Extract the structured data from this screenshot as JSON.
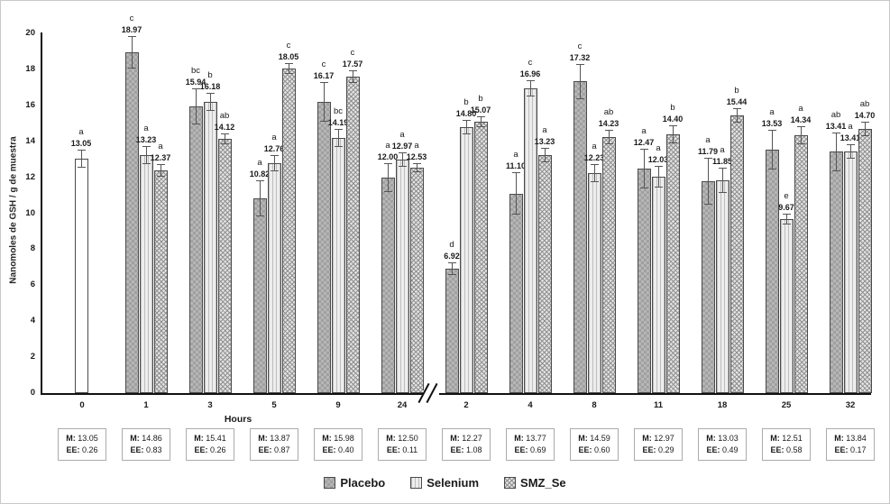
{
  "figure": {
    "ylabel": "Nanomoles de GSH / g de muestra",
    "xlabel": "Hours",
    "legend": [
      {
        "label": "Placebo",
        "pattern": "placebo"
      },
      {
        "label": "Selenium",
        "pattern": "selenium"
      },
      {
        "label": "SMZ_Se",
        "pattern": "smz"
      }
    ],
    "colors": {
      "axis": "#111111",
      "bar_border": "#4a4a4a",
      "error_bar": "#555555",
      "placebo_fill": "#b6b6b6",
      "selenium_fill": "#ededed",
      "smz_fill": "#e3e3e3",
      "baseline_fill": "#ffffff",
      "summary_box_border": "#ababab"
    }
  },
  "chart_data": {
    "type": "bar",
    "title": "",
    "xlabel": "Hours",
    "ylabel": "Nanomoles de GSH / g de muestra",
    "ylim": [
      0,
      20
    ],
    "y_ticks": [
      0,
      2,
      4,
      6,
      8,
      10,
      12,
      14,
      16,
      18,
      20
    ],
    "grid": false,
    "legend_position": "bottom-center",
    "axis_break_between": [
      "24",
      "2"
    ],
    "categories": [
      "0",
      "1",
      "3",
      "5",
      "9",
      "24",
      "2",
      "4",
      "8",
      "11",
      "18",
      "25",
      "32"
    ],
    "series": [
      {
        "name": "Placebo",
        "values": [
          null,
          18.97,
          15.94,
          10.82,
          16.17,
          12.0,
          6.92,
          11.1,
          17.32,
          12.47,
          11.79,
          13.53,
          13.41
        ]
      },
      {
        "name": "Selenium",
        "values": [
          null,
          13.23,
          16.18,
          12.76,
          14.19,
          12.97,
          14.8,
          16.96,
          12.23,
          12.03,
          11.85,
          9.67,
          13.41
        ]
      },
      {
        "name": "SMZ_Se",
        "values": [
          null,
          12.37,
          14.12,
          18.05,
          17.57,
          12.53,
          15.07,
          13.23,
          14.23,
          14.4,
          15.44,
          14.34,
          14.7
        ]
      }
    ],
    "baseline_bar": {
      "category": "0",
      "value": 13.05,
      "letter": "a"
    },
    "groups": [
      {
        "hour": "0",
        "M": "13.05",
        "EE": "0.26",
        "bars": [
          {
            "series": "Baseline",
            "pattern": "baseline",
            "value": 13.05,
            "label": "13.05",
            "letter": "a",
            "err": 0.5
          }
        ]
      },
      {
        "hour": "1",
        "M": "14.86",
        "EE": "0.83",
        "bars": [
          {
            "series": "Placebo",
            "pattern": "placebo",
            "value": 18.97,
            "label": "18.97",
            "letter": "c",
            "err": 0.9
          },
          {
            "series": "Selenium",
            "pattern": "selenium",
            "value": 13.23,
            "label": "13.23",
            "letter": "a",
            "err": 0.5
          },
          {
            "series": "SMZ_Se",
            "pattern": "smz",
            "value": 12.37,
            "label": "12.37",
            "letter": "a",
            "err": 0.35
          }
        ]
      },
      {
        "hour": "3",
        "M": "15.41",
        "EE": "0.26",
        "bars": [
          {
            "series": "Placebo",
            "pattern": "placebo",
            "value": 15.94,
            "label": "15.94",
            "letter": "bc",
            "err": 1.0
          },
          {
            "series": "Selenium",
            "pattern": "selenium",
            "value": 16.18,
            "label": "16.18",
            "letter": "b",
            "err": 0.5
          },
          {
            "series": "SMZ_Se",
            "pattern": "smz",
            "value": 14.12,
            "label": "14.12",
            "letter": "ab",
            "err": 0.3
          }
        ]
      },
      {
        "hour": "5",
        "M": "13.87",
        "EE": "0.87",
        "bars": [
          {
            "series": "Placebo",
            "pattern": "placebo",
            "value": 10.82,
            "label": "10.82",
            "letter": "a",
            "err": 1.0
          },
          {
            "series": "Selenium",
            "pattern": "selenium",
            "value": 12.76,
            "label": "12.76",
            "letter": "a",
            "err": 0.45
          },
          {
            "series": "SMZ_Se",
            "pattern": "smz",
            "value": 18.05,
            "label": "18.05",
            "letter": "c",
            "err": 0.3
          }
        ]
      },
      {
        "hour": "9",
        "M": "15.98",
        "EE": "0.40",
        "bars": [
          {
            "series": "Placebo",
            "pattern": "placebo",
            "value": 16.17,
            "label": "16.17",
            "letter": "c",
            "err": 1.1
          },
          {
            "series": "Selenium",
            "pattern": "selenium",
            "value": 14.19,
            "label": "14.19",
            "letter": "bc",
            "err": 0.5
          },
          {
            "series": "SMZ_Se",
            "pattern": "smz",
            "value": 17.57,
            "label": "17.57",
            "letter": "c",
            "err": 0.35
          }
        ]
      },
      {
        "hour": "24",
        "M": "12.50",
        "EE": "0.11",
        "bars": [
          {
            "series": "Placebo",
            "pattern": "placebo",
            "value": 12.0,
            "label": "12.00",
            "letter": "a",
            "err": 0.8
          },
          {
            "series": "Selenium",
            "pattern": "selenium",
            "value": 12.97,
            "label": "12.97",
            "letter": "a",
            "err": 0.4
          },
          {
            "series": "SMZ_Se",
            "pattern": "smz",
            "value": 12.53,
            "label": "12.53",
            "letter": "a",
            "err": 0.25
          }
        ]
      },
      {
        "hour": "2",
        "M": "12.27",
        "EE": "1.08",
        "bars": [
          {
            "series": "Placebo",
            "pattern": "placebo",
            "value": 6.92,
            "label": "6.92",
            "letter": "d",
            "err": 0.35
          },
          {
            "series": "Selenium",
            "pattern": "selenium",
            "value": 14.8,
            "label": "14.80",
            "letter": "b",
            "err": 0.4
          },
          {
            "series": "SMZ_Se",
            "pattern": "smz",
            "value": 15.07,
            "label": "15.07",
            "letter": "b",
            "err": 0.3
          }
        ]
      },
      {
        "hour": "4",
        "M": "13.77",
        "EE": "0.69",
        "bars": [
          {
            "series": "Placebo",
            "pattern": "placebo",
            "value": 11.1,
            "label": "11.10",
            "letter": "a",
            "err": 1.2
          },
          {
            "series": "Selenium",
            "pattern": "selenium",
            "value": 16.96,
            "label": "16.96",
            "letter": "c",
            "err": 0.45
          },
          {
            "series": "SMZ_Se",
            "pattern": "smz",
            "value": 13.23,
            "label": "13.23",
            "letter": "a",
            "err": 0.4
          }
        ]
      },
      {
        "hour": "8",
        "M": "14.59",
        "EE": "0.60",
        "bars": [
          {
            "series": "Placebo",
            "pattern": "placebo",
            "value": 17.32,
            "label": "17.32",
            "letter": "c",
            "err": 1.0
          },
          {
            "series": "Selenium",
            "pattern": "selenium",
            "value": 12.23,
            "label": "12.23",
            "letter": "a",
            "err": 0.5
          },
          {
            "series": "SMZ_Se",
            "pattern": "smz",
            "value": 14.23,
            "label": "14.23",
            "letter": "ab",
            "err": 0.4
          }
        ]
      },
      {
        "hour": "11",
        "M": "12.97",
        "EE": "0.29",
        "bars": [
          {
            "series": "Placebo",
            "pattern": "placebo",
            "value": 12.47,
            "label": "12.47",
            "letter": "a",
            "err": 1.1
          },
          {
            "series": "Selenium",
            "pattern": "selenium",
            "value": 12.03,
            "label": "12.03",
            "letter": "a",
            "err": 0.6
          },
          {
            "series": "SMZ_Se",
            "pattern": "smz",
            "value": 14.4,
            "label": "14.40",
            "letter": "b",
            "err": 0.5
          }
        ]
      },
      {
        "hour": "18",
        "M": "13.03",
        "EE": "0.49",
        "bars": [
          {
            "series": "Placebo",
            "pattern": "placebo",
            "value": 11.79,
            "label": "11.79",
            "letter": "a",
            "err": 1.3
          },
          {
            "series": "Selenium",
            "pattern": "selenium",
            "value": 11.85,
            "label": "11.85",
            "letter": "a",
            "err": 0.7
          },
          {
            "series": "SMZ_Se",
            "pattern": "smz",
            "value": 15.44,
            "label": "15.44",
            "letter": "b",
            "err": 0.4
          }
        ]
      },
      {
        "hour": "25",
        "M": "12.51",
        "EE": "0.58",
        "bars": [
          {
            "series": "Placebo",
            "pattern": "placebo",
            "value": 13.53,
            "label": "13.53",
            "letter": "a",
            "err": 1.1
          },
          {
            "series": "Selenium",
            "pattern": "selenium",
            "value": 9.67,
            "label": "9.67",
            "letter": "e",
            "err": 0.3
          },
          {
            "series": "SMZ_Se",
            "pattern": "smz",
            "value": 14.34,
            "label": "14.34",
            "letter": "a",
            "err": 0.5
          }
        ]
      },
      {
        "hour": "32",
        "M": "13.84",
        "EE": "0.17",
        "bars": [
          {
            "series": "Placebo",
            "pattern": "placebo",
            "value": 13.41,
            "label": "13.41",
            "letter": "ab",
            "err": 1.1
          },
          {
            "series": "Selenium",
            "pattern": "selenium",
            "value": 13.41,
            "label": "13.41",
            "letter": "a",
            "err": 0.4
          },
          {
            "series": "SMZ_Se",
            "pattern": "smz",
            "value": 14.7,
            "label": "14.70",
            "letter": "ab",
            "err": 0.4
          }
        ]
      }
    ]
  }
}
